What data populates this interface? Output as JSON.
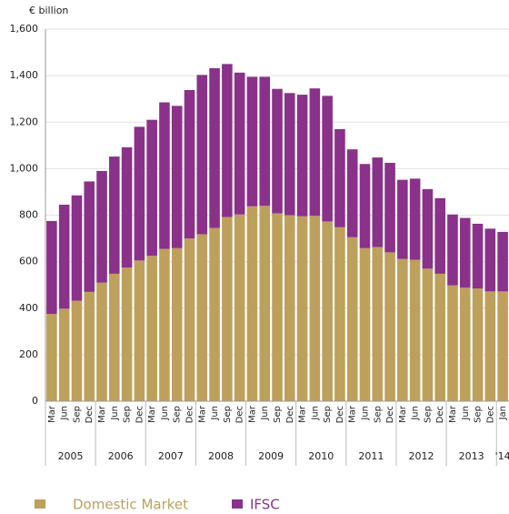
{
  "chart_data": {
    "type": "stacked_bar",
    "y_axis_label": "€ billion",
    "categories": [
      "Mar",
      "Jun",
      "Sep",
      "Dec",
      "Mar",
      "Jun",
      "Sep",
      "Dec",
      "Mar",
      "Jun",
      "Sep",
      "Dec",
      "Mar",
      "Jun",
      "Sep",
      "Dec",
      "Mar",
      "Jun",
      "Sep",
      "Dec",
      "Mar",
      "Jun",
      "Sep",
      "Dec",
      "Mar",
      "Jun",
      "Sep",
      "Dec",
      "Mar",
      "Jun",
      "Sep",
      "Dec",
      "Mar",
      "Jun",
      "Sep",
      "Dec",
      "Jan"
    ],
    "year_labels": [
      "2005",
      "2006",
      "2007",
      "2008",
      "2009",
      "2010",
      "2011",
      "2012",
      "2013",
      "'14"
    ],
    "year_spans": [
      4,
      4,
      4,
      4,
      4,
      4,
      4,
      4,
      4,
      1
    ],
    "series": [
      {
        "name": "Domestic Market",
        "color": "#bda05c",
        "values": [
          375,
          398,
          432,
          470,
          510,
          548,
          575,
          605,
          625,
          655,
          658,
          700,
          718,
          745,
          792,
          803,
          838,
          840,
          808,
          800,
          795,
          797,
          773,
          748,
          705,
          658,
          663,
          640,
          612,
          608,
          570,
          548,
          498,
          488,
          485,
          472,
          472
        ]
      },
      {
        "name": "IFSC",
        "color": "#8a3189",
        "values": [
          400,
          447,
          453,
          475,
          480,
          504,
          517,
          575,
          585,
          630,
          612,
          638,
          685,
          687,
          658,
          610,
          557,
          555,
          535,
          525,
          523,
          548,
          540,
          422,
          378,
          362,
          385,
          385,
          340,
          349,
          342,
          325,
          305,
          300,
          278,
          270,
          256
        ]
      }
    ],
    "ylim": [
      0,
      1600
    ],
    "yticks": [
      0,
      200,
      400,
      600,
      800,
      {
        "value": 1000,
        "label": "1,000"
      },
      {
        "value": 1200,
        "label": "1,200"
      },
      {
        "value": 1400,
        "label": "1,400"
      },
      {
        "value": 1600,
        "label": "1,600"
      }
    ],
    "grid": true
  }
}
